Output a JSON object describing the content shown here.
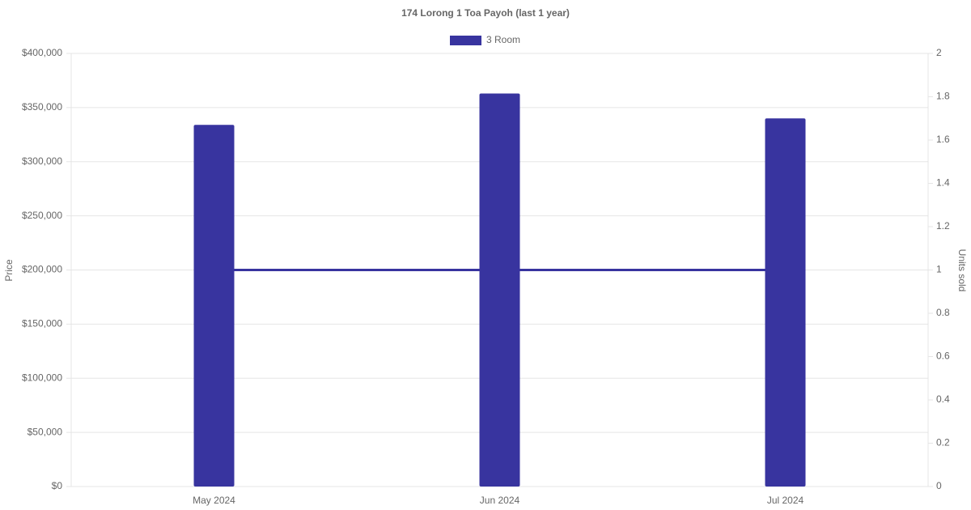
{
  "chart_data": {
    "type": "bar",
    "title": "174 Lorong 1 Toa Payoh (last 1 year)",
    "categories": [
      "May 2024",
      "Jun 2024",
      "Jul 2024"
    ],
    "series": [
      {
        "name": "3 Room",
        "type": "bar",
        "color": "#38349f",
        "values": [
          334000,
          363000,
          340000
        ]
      },
      {
        "type": "line",
        "axis": "y2",
        "color": "#38349f",
        "values": [
          1,
          1,
          1
        ]
      }
    ],
    "y_label": "Price",
    "y2_label": "Units sold",
    "ylim": [
      0,
      400000
    ],
    "yticks": [
      {
        "value": 0,
        "label": "$0"
      },
      {
        "value": 50000,
        "label": "$50,000"
      },
      {
        "value": 100000,
        "label": "$100,000"
      },
      {
        "value": 150000,
        "label": "$150,000"
      },
      {
        "value": 200000,
        "label": "$200,000"
      },
      {
        "value": 250000,
        "label": "$250,000"
      },
      {
        "value": 300000,
        "label": "$300,000"
      },
      {
        "value": 350000,
        "label": "$350,000"
      },
      {
        "value": 400000,
        "label": "$400,000"
      }
    ],
    "y2lim": [
      0,
      2
    ],
    "y2ticks": [
      0,
      0.2,
      0.4,
      0.6,
      0.8,
      1,
      1.2,
      1.4,
      1.6,
      1.8,
      2
    ],
    "grid": true,
    "legend": "top"
  }
}
